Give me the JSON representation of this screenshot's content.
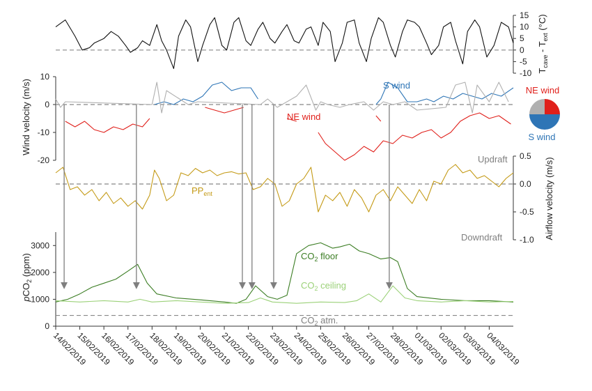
{
  "chart_data": [
    {
      "type": "line",
      "ylabel": "T_cave - T_ext (°C)",
      "ylabel_main": "T",
      "ylabel_sub1": "cave",
      "ylabel_mid": " - T",
      "ylabel_sub2": "ext",
      "ylabel_unit": " (°C)",
      "ylim": [
        -10,
        15
      ],
      "yticks": [
        "15",
        "10",
        "5",
        "0",
        "-5",
        "-10"
      ],
      "ytick_values": [
        15,
        10,
        5,
        0,
        -5,
        -10
      ],
      "reference_line": 0,
      "series": [
        {
          "color": "#111111",
          "x": [
            0,
            0.4,
            0.8,
            1.1,
            1.4,
            1.6,
            2.0,
            2.3,
            2.6,
            2.9,
            3.1,
            3.4,
            3.6,
            3.9,
            4.2,
            4.4,
            4.6,
            4.9,
            5.1,
            5.4,
            5.6,
            5.9,
            6.1,
            6.4,
            6.6,
            6.9,
            7.1,
            7.4,
            7.6,
            7.9,
            8.1,
            8.4,
            8.6,
            8.9,
            9.1,
            9.4,
            9.6,
            9.9,
            10.1,
            10.4,
            10.6,
            10.9,
            11.1,
            11.4,
            11.6,
            11.9,
            12.1,
            12.4,
            12.6,
            12.9,
            13.1,
            13.4,
            13.6,
            13.9,
            14.1,
            14.4,
            14.6,
            14.9,
            15.1,
            15.4,
            15.6,
            15.9,
            16.1,
            16.4,
            16.6,
            16.9,
            17.1,
            17.4,
            17.6,
            17.9,
            18.2,
            18.5,
            18.8,
            19.0
          ],
          "y": [
            10,
            13,
            6,
            0,
            1,
            3,
            5,
            8,
            6,
            2,
            -1,
            1,
            4,
            2,
            11,
            4,
            0,
            -8,
            6,
            13,
            10,
            -5,
            2,
            11,
            14,
            2,
            0,
            12,
            14,
            4,
            2,
            9,
            12,
            5,
            3,
            8,
            11,
            4,
            3,
            9,
            10,
            2,
            12,
            8,
            -5,
            3,
            12,
            13,
            3,
            -5,
            5,
            14,
            12,
            2,
            -3,
            8,
            13,
            12,
            10,
            3,
            -2,
            2,
            10,
            12,
            4,
            -6,
            8,
            13,
            10,
            -3,
            2,
            12,
            10,
            3
          ]
        }
      ]
    },
    {
      "type": "line",
      "ylabel": "Wind velocity (m/s)",
      "ylim": [
        -20,
        10
      ],
      "yticks": [
        "10",
        "0",
        "-10",
        "-20"
      ],
      "ytick_values": [
        10,
        0,
        -10,
        -20
      ],
      "reference_line": 0,
      "series": [
        {
          "name": "S wind",
          "color": "#2e75b6",
          "x": [
            4.1,
            4.5,
            4.9,
            5.3,
            5.7,
            6.1,
            6.5,
            6.9,
            7.3,
            7.7,
            8.1,
            8.4,
            null,
            13.3,
            13.5,
            13.8,
            14.2,
            14.6,
            15.0,
            15.4,
            15.7,
            16.1,
            16.5,
            16.9,
            17.3,
            17.7,
            18.1,
            18.5,
            19.0
          ],
          "y": [
            0,
            1,
            0,
            2,
            1,
            3,
            7,
            8,
            5,
            6,
            6,
            2,
            null,
            0,
            2,
            8,
            6,
            1,
            1,
            2,
            1,
            3,
            2,
            4,
            3,
            2,
            4,
            3,
            6
          ]
        },
        {
          "name": "NE wind",
          "color": "#e0201b",
          "x": [
            0.4,
            0.8,
            1.2,
            1.6,
            2.0,
            2.4,
            2.8,
            3.2,
            3.6,
            3.9,
            null,
            6.2,
            6.6,
            7.0,
            7.4,
            7.8,
            null,
            9.6,
            10.0,
            null,
            10.9,
            11.2,
            11.6,
            12.0,
            12.4,
            12.8,
            13.2,
            13.6,
            14.0,
            14.4,
            14.8,
            15.2,
            15.6,
            16.0,
            16.4,
            16.8,
            17.2,
            17.6,
            18.0,
            18.4,
            18.9,
            null,
            13.3,
            13.5
          ],
          "y": [
            -6,
            -8,
            -6,
            -9,
            -10,
            -8,
            -9,
            -7,
            -8,
            -5,
            null,
            -1,
            -2,
            -3,
            -2,
            -1,
            null,
            -5,
            -6,
            null,
            -10,
            -14,
            -17,
            -20,
            -18,
            -15,
            -17,
            -13,
            -14,
            -11,
            -12,
            -10,
            -9,
            -12,
            -10,
            -6,
            -4,
            -3,
            -5,
            -4,
            -7,
            null,
            -4,
            -6
          ]
        },
        {
          "color": "#b0b0b0",
          "x": [
            0.0,
            0.2,
            0.4,
            4.0,
            4.2,
            4.4,
            4.6,
            5.5,
            5.9,
            8.5,
            8.8,
            9.2,
            9.6,
            10.0,
            10.4,
            10.8,
            11.0,
            11.3,
            11.8,
            12.2,
            12.8,
            13.2,
            13.6,
            14.0,
            14.5,
            15.0,
            16.2,
            16.6,
            17.0,
            17.3,
            17.5,
            18.0,
            18.4,
            18.8
          ],
          "y": [
            2,
            -1,
            1,
            0,
            8,
            -3,
            5,
            0,
            1,
            0,
            2,
            -1,
            1,
            3,
            7,
            -2,
            1,
            0,
            -1,
            0,
            1,
            -2,
            1,
            0,
            1,
            -2,
            -1,
            7,
            8,
            -3,
            7,
            1,
            8,
            1
          ]
        }
      ]
    },
    {
      "type": "line",
      "ylabel": "Airflow velocity (m/s)",
      "ylim": [
        -1.0,
        0.5
      ],
      "yticks": [
        "0.5",
        "0.0",
        "-0.5",
        "-1.0"
      ],
      "ytick_values": [
        0.5,
        0.0,
        -0.5,
        -1.0
      ],
      "reference_line": 0,
      "series": [
        {
          "name": "PP_ent",
          "color": "#c49a16",
          "x": [
            0.0,
            0.3,
            0.6,
            0.9,
            1.2,
            1.5,
            1.8,
            2.1,
            2.4,
            2.7,
            3.0,
            3.3,
            3.6,
            3.9,
            4.1,
            4.3,
            4.6,
            4.9,
            5.2,
            5.5,
            5.8,
            6.1,
            6.4,
            6.7,
            7.0,
            7.3,
            7.6,
            7.9,
            8.2,
            8.5,
            8.8,
            9.1,
            9.4,
            9.7,
            10.0,
            10.3,
            10.6,
            10.9,
            11.2,
            11.5,
            11.8,
            12.1,
            12.4,
            12.7,
            13.0,
            13.3,
            13.6,
            13.9,
            14.2,
            14.5,
            14.8,
            15.1,
            15.4,
            15.7,
            16.0,
            16.3,
            16.6,
            16.9,
            17.2,
            17.5,
            17.8,
            18.1,
            18.4,
            18.7,
            19.0
          ],
          "y": [
            0.2,
            0.3,
            -0.1,
            -0.05,
            -0.2,
            -0.1,
            -0.3,
            -0.15,
            -0.35,
            -0.25,
            -0.4,
            -0.3,
            -0.45,
            -0.2,
            0.25,
            0.1,
            -0.3,
            -0.2,
            0.2,
            0.15,
            0.28,
            0.2,
            0.25,
            0.15,
            0.2,
            0.22,
            0.18,
            0.2,
            -0.1,
            -0.05,
            0.1,
            0.0,
            -0.4,
            -0.3,
            0.0,
            0.1,
            0.3,
            -0.5,
            -0.2,
            -0.3,
            -0.15,
            -0.4,
            -0.1,
            -0.25,
            -0.5,
            -0.2,
            -0.1,
            -0.3,
            -0.05,
            -0.2,
            -0.35,
            -0.1,
            -0.3,
            0.05,
            0.0,
            0.25,
            0.35,
            0.2,
            0.25,
            0.1,
            0.15,
            0.05,
            -0.05,
            0.1,
            0.2
          ]
        }
      ]
    },
    {
      "type": "line",
      "ylabel": "pCO2 (ppm)",
      "ylabel_italic": "p",
      "ylabel_main": "CO",
      "ylabel_sub": "2",
      "ylabel_unit": " (ppm)",
      "ylim": [
        0,
        3500
      ],
      "yticks": [
        "3000",
        "2000",
        "1000",
        "0"
      ],
      "ytick_values": [
        3000,
        2000,
        1000,
        0
      ],
      "reference_line": 400,
      "categories": [
        "14/02/2019",
        "15/02/2019",
        "16/02/2019",
        "17/02/2019",
        "18/02/2019",
        "19/02/2019",
        "20/02/2019",
        "21/02/2019",
        "22/02/2019",
        "23/02/2019",
        "24/02/2019",
        "25/02/2019",
        "26/02/2019",
        "27/02/2019",
        "28/02/2019",
        "01/03/2019",
        "02/03/2019",
        "03/03/2019",
        "04/03/2019"
      ],
      "series": [
        {
          "name": "CO2 floor",
          "color": "#3b7d23",
          "x": [
            0.0,
            0.5,
            1.0,
            1.5,
            2.0,
            2.5,
            3.0,
            3.4,
            3.8,
            4.2,
            5.0,
            6.0,
            7.0,
            7.5,
            7.9,
            8.3,
            8.8,
            9.2,
            9.6,
            10.0,
            10.5,
            11.0,
            11.5,
            11.8,
            12.2,
            12.6,
            13.0,
            13.5,
            13.9,
            14.2,
            14.6,
            15.0,
            16.0,
            17.0,
            18.0,
            19.0
          ],
          "y": [
            900,
            1000,
            1200,
            1450,
            1600,
            1750,
            2050,
            2300,
            1600,
            1200,
            1050,
            980,
            900,
            850,
            1000,
            1500,
            1100,
            1000,
            1150,
            2700,
            3000,
            3100,
            2900,
            2950,
            3050,
            2800,
            2700,
            2500,
            2550,
            2400,
            1400,
            1100,
            1000,
            950,
            950,
            900
          ]
        },
        {
          "name": "CO2 ceiling",
          "color": "#9bd178",
          "x": [
            0.0,
            1.0,
            2.0,
            3.0,
            3.5,
            4.0,
            5.0,
            6.0,
            7.0,
            8.0,
            8.5,
            9.0,
            10.0,
            11.0,
            12.0,
            12.5,
            13.0,
            13.5,
            14.0,
            14.5,
            15.0,
            16.0,
            17.0,
            18.0,
            19.0
          ],
          "y": [
            950,
            900,
            950,
            900,
            1000,
            900,
            950,
            900,
            850,
            880,
            1050,
            900,
            850,
            900,
            880,
            950,
            1200,
            900,
            1500,
            1050,
            950,
            900,
            950,
            900,
            920
          ]
        }
      ]
    }
  ],
  "annotations": {
    "s_wind": "S wind",
    "ne_wind": "NE wind",
    "ne_wind_legend": "NE wind",
    "s_wind_legend": "S wind",
    "pp_main": "PP",
    "pp_sub": "ent",
    "updraft": "Updraft",
    "downdraft": "Downdraft",
    "co2_floor_main": "CO",
    "co2_floor_sub": "2",
    "co2_floor_rest": " floor",
    "co2_ceiling_main": "CO",
    "co2_ceiling_sub": "2",
    "co2_ceiling_rest": " ceiling",
    "co2_atm_main": "CO",
    "co2_atm_sub": "2",
    "co2_atm_rest": " atm."
  },
  "arrow_days": [
    0.35,
    3.35,
    7.75,
    8.15,
    9.05,
    13.85
  ],
  "colors": {
    "tdiff": "#111111",
    "s_wind": "#2e75b6",
    "ne_wind": "#e0201b",
    "wind_other": "#b0b0b0",
    "pp_ent": "#c49a16",
    "co2_floor": "#3b7d23",
    "co2_ceiling": "#9bd178",
    "reference": "#888888",
    "arrow": "#7f7f7f"
  }
}
